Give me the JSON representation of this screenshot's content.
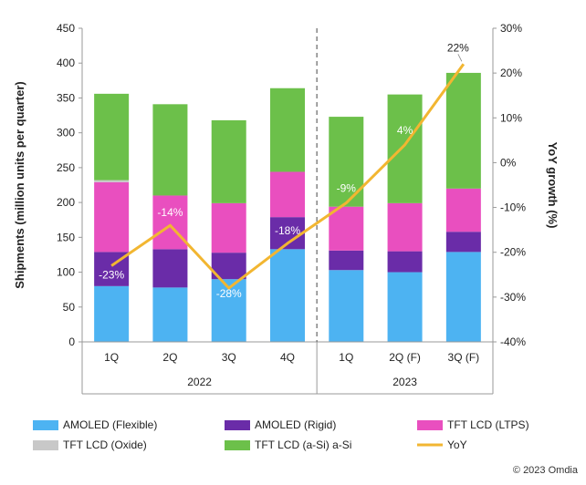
{
  "chart_data": {
    "type": "bar",
    "stacked": true,
    "categories": [
      "1Q",
      "2Q",
      "3Q",
      "4Q",
      "1Q",
      "2Q (F)",
      "3Q (F)"
    ],
    "groups": [
      {
        "label": "2022",
        "count": 4
      },
      {
        "label": "2023",
        "count": 3
      }
    ],
    "series": [
      {
        "name": "AMOLED (Flexible)",
        "color": "#4db3f2",
        "values": [
          80,
          78,
          90,
          133,
          103,
          100,
          129
        ]
      },
      {
        "name": "AMOLED (Rigid)",
        "color": "#6a2ca8",
        "values": [
          49,
          55,
          38,
          46,
          28,
          30,
          29
        ]
      },
      {
        "name": "TFT LCD (LTPS)",
        "color": "#e94fbf",
        "values": [
          100,
          77,
          71,
          65,
          63,
          69,
          62
        ]
      },
      {
        "name": "TFT LCD (Oxide)",
        "color": "#c8c8c8",
        "values": [
          3,
          0,
          0,
          0,
          0,
          0,
          0
        ]
      },
      {
        "name": "TFT LCD (a-Si) a-Si",
        "color": "#6cc04a",
        "values": [
          124,
          131,
          119,
          120,
          129,
          156,
          166
        ]
      }
    ],
    "line": {
      "name": "YoY",
      "color": "#f2b631",
      "values": [
        -23,
        -14,
        -28,
        -18,
        -9,
        4,
        22
      ],
      "labels": [
        "-23%",
        "-14%",
        "-28%",
        "-18%",
        "-9%",
        "4%",
        "22%"
      ]
    },
    "ylabel": "Shipments (million units per quarter)",
    "y2label": "YoY growth (%)",
    "ylim": [
      0,
      450
    ],
    "yticks": [
      "0",
      "50",
      "100",
      "150",
      "200",
      "250",
      "300",
      "350",
      "400",
      "450"
    ],
    "y2lim": [
      -40,
      30
    ],
    "y2ticks": [
      "-40%",
      "-30%",
      "-20%",
      "-10%",
      "0%",
      "10%",
      "20%",
      "30%"
    ],
    "grid": false,
    "legend_position": "bottom"
  },
  "copyright": "© 2023 Omdia"
}
